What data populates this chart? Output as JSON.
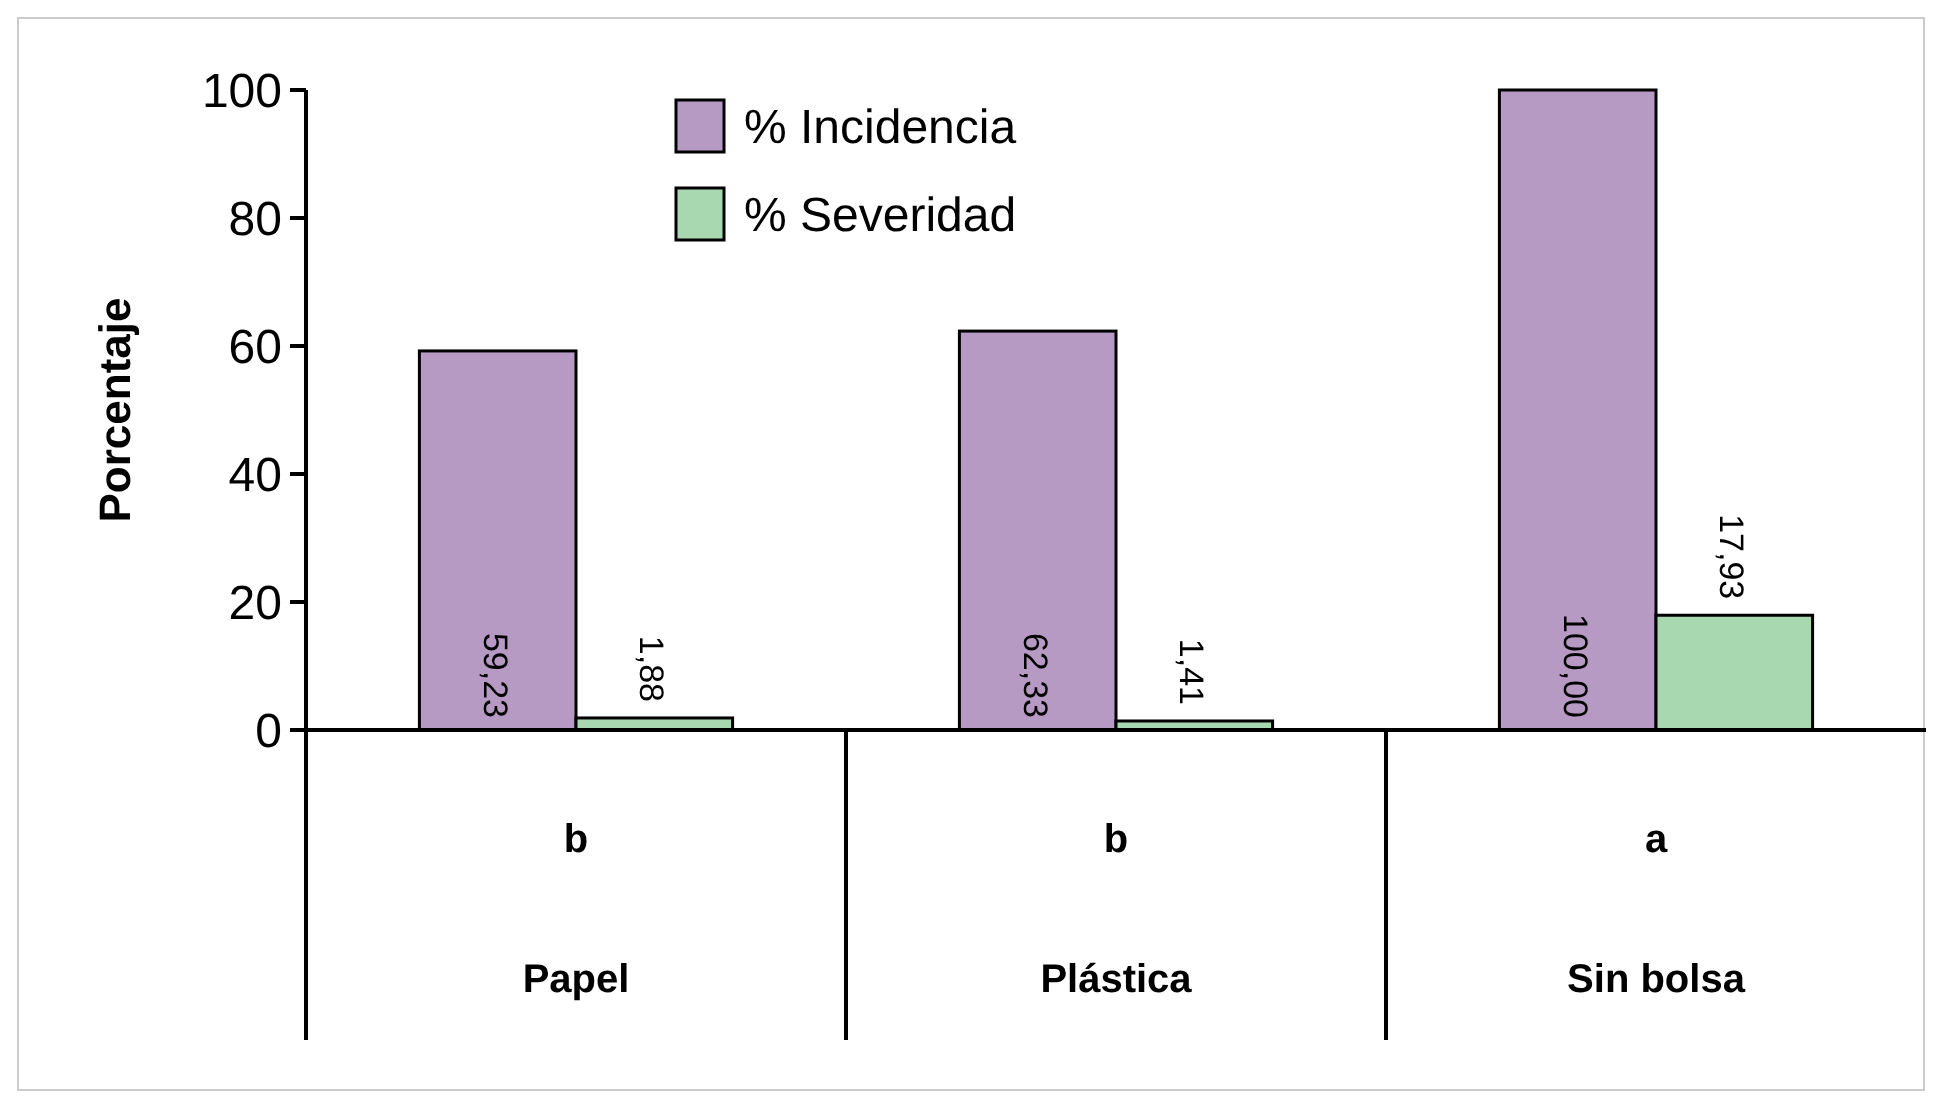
{
  "chart_data": {
    "type": "bar",
    "ylabel": "Porcentaje",
    "categories": [
      "Papel",
      "Plástica",
      "Sin bolsa"
    ],
    "ylim": [
      0,
      100
    ],
    "yticks": [
      0,
      20,
      40,
      60,
      80,
      100
    ],
    "legend": "top",
    "grid": false,
    "series": [
      {
        "name": "% Incidencia",
        "color": "#b79ac4",
        "values": [
          59.23,
          62.33,
          100.0
        ],
        "value_labels": [
          "59,23",
          "62,33",
          "100,00"
        ]
      },
      {
        "name": "% Severidad",
        "color": "#a8d8b0",
        "values": [
          1.88,
          1.41,
          17.93
        ],
        "value_labels": [
          "1,88",
          "1,41",
          "17,93"
        ]
      }
    ],
    "annotations": [
      "b",
      "b",
      "a"
    ]
  }
}
